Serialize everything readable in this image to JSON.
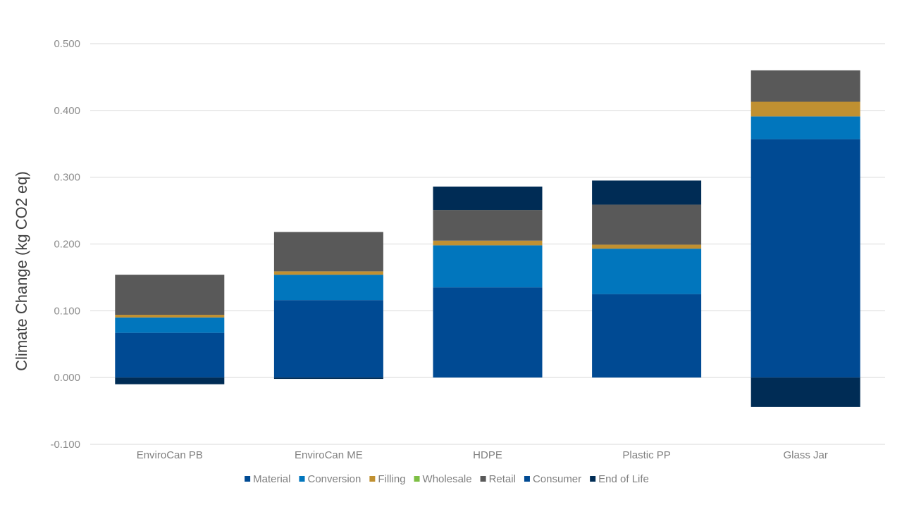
{
  "chart_data": {
    "type": "bar",
    "stacked": true,
    "title": "",
    "xlabel": "",
    "ylabel": "Climate Change (kg CO2 eq)",
    "ylim": [
      -0.1,
      0.5
    ],
    "yticks": [
      "0.500",
      "0.400",
      "0.300",
      "0.200",
      "0.100",
      "0.000",
      "-0.100"
    ],
    "ytick_values": [
      0.5,
      0.4,
      0.3,
      0.2,
      0.1,
      0.0,
      -0.1
    ],
    "grid": true,
    "legend_position": "bottom",
    "categories": [
      "EnviroCan PB",
      "EnviroCan ME",
      "HDPE",
      "Plastic PP",
      "Glass Jar"
    ],
    "series": [
      {
        "name": "Material",
        "color": "#004a93",
        "values": [
          0.067,
          0.116,
          0.135,
          0.125,
          0.357
        ]
      },
      {
        "name": "Conversion",
        "color": "#0176bd",
        "values": [
          0.023,
          0.038,
          0.063,
          0.068,
          0.034
        ]
      },
      {
        "name": "Filling",
        "color": "#c09031",
        "values": [
          0.004,
          0.005,
          0.007,
          0.006,
          0.022
        ]
      },
      {
        "name": "Wholesale",
        "color": "#7dbf44",
        "values": [
          0.0,
          0.0,
          0.0,
          0.0,
          0.0
        ]
      },
      {
        "name": "Retail",
        "color": "#595959",
        "values": [
          0.06,
          0.059,
          0.046,
          0.06,
          0.047
        ]
      },
      {
        "name": "Consumer",
        "color": "#004a93",
        "values": [
          0.0,
          0.0,
          0.0,
          0.0,
          0.0
        ]
      },
      {
        "name": "End of Life",
        "color": "#002c55",
        "values": [
          -0.01,
          -0.002,
          0.035,
          0.036,
          -0.044
        ]
      }
    ]
  }
}
